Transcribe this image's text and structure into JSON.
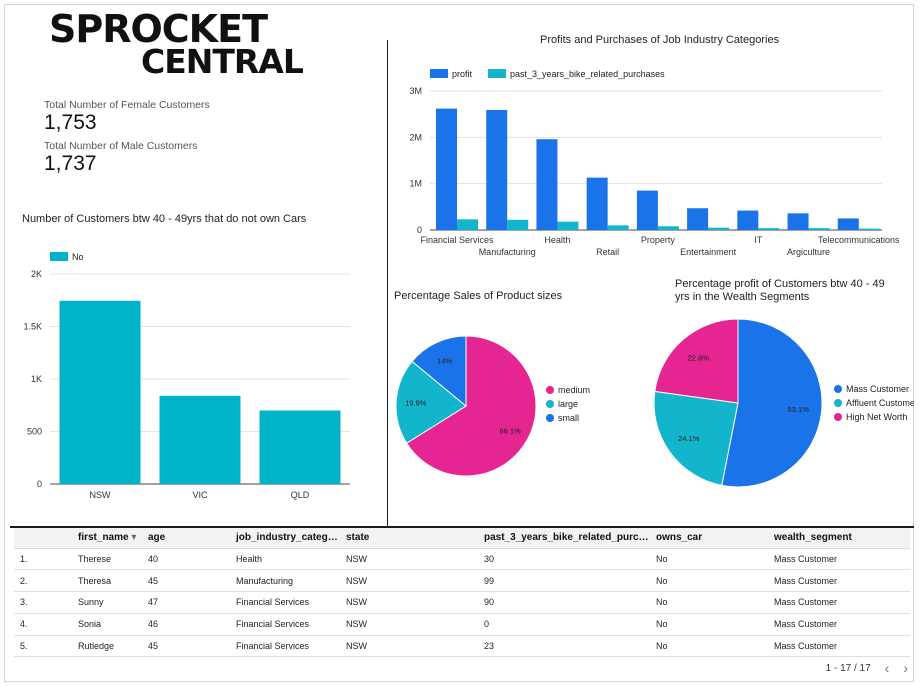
{
  "logo": {
    "line1": "SPROCKET",
    "line2": "CENTRAL"
  },
  "kpis": {
    "female_label": "Total Number of Female Customers",
    "female_value": "1,753",
    "male_label": "Total Number of Male Customers",
    "male_value": "1,737"
  },
  "colors": {
    "profit": "#1a73e8",
    "purchases": "#12b5cb",
    "no_car": "#00b3c9",
    "medium": "#e52592",
    "large": "#12b5cb",
    "small": "#1a73e8"
  },
  "chart_data": [
    {
      "id": "cars",
      "type": "bar",
      "title": "Number of Customers btw 40 - 49yrs that do not own Cars",
      "legend": [
        "No"
      ],
      "categories": [
        "NSW",
        "VIC",
        "QLD"
      ],
      "values": [
        1745,
        840,
        700
      ],
      "ylim": [
        0,
        2000
      ],
      "yticks": [
        {
          "v": 0,
          "label": "0"
        },
        {
          "v": 500,
          "label": "500"
        },
        {
          "v": 1000,
          "label": "1K"
        },
        {
          "v": 1500,
          "label": "1.5K"
        },
        {
          "v": 2000,
          "label": "2K"
        }
      ]
    },
    {
      "id": "industry",
      "type": "bar",
      "title": "Profits and Purchases of Job Industry Categories",
      "categories": [
        "Financial Services",
        "Manufacturing",
        "Health",
        "Retail",
        "Property",
        "Entertainment",
        "IT",
        "Argiculture",
        "Telecommunications"
      ],
      "series": [
        {
          "name": "profit",
          "values": [
            2620000,
            2590000,
            1960000,
            1130000,
            850000,
            470000,
            420000,
            360000,
            250000
          ]
        },
        {
          "name": "past_3_years_bike_related_purchases",
          "values": [
            230000,
            220000,
            180000,
            100000,
            80000,
            50000,
            40000,
            40000,
            30000
          ]
        }
      ],
      "ylim": [
        0,
        3000000
      ],
      "yticks": [
        {
          "v": 0,
          "label": "0"
        },
        {
          "v": 1000000,
          "label": "1M"
        },
        {
          "v": 2000000,
          "label": "2M"
        },
        {
          "v": 3000000,
          "label": "3M"
        }
      ]
    },
    {
      "id": "sizes",
      "type": "pie",
      "title": "Percentage Sales of Product sizes",
      "slices": [
        {
          "name": "medium",
          "value": 66.1,
          "label": "66.1%"
        },
        {
          "name": "large",
          "value": 19.9,
          "label": "19.9%"
        },
        {
          "name": "small",
          "value": 14.0,
          "label": "14%"
        }
      ]
    },
    {
      "id": "wealth",
      "type": "pie",
      "title": "Percentage profit of Customers btw 40 - 49 yrs in the  Wealth Segments",
      "slices": [
        {
          "name": "Mass Customer",
          "value": 53.1,
          "label": "53.1%"
        },
        {
          "name": "Affluent Customer",
          "value": 24.1,
          "label": "24.1%"
        },
        {
          "name": "High Net Worth",
          "value": 22.8,
          "label": "22.8%"
        }
      ]
    }
  ],
  "table": {
    "columns": [
      "",
      "first_name",
      "age",
      "job_industry_categ…",
      "state",
      "past_3_years_bike_related_purc…",
      "owns_car",
      "wealth_segment"
    ],
    "rows": [
      [
        "1.",
        "Therese",
        "40",
        "Health",
        "NSW",
        "30",
        "No",
        "Mass Customer"
      ],
      [
        "2.",
        "Theresa",
        "45",
        "Manufacturing",
        "NSW",
        "99",
        "No",
        "Mass Customer"
      ],
      [
        "3.",
        "Sunny",
        "47",
        "Financial Services",
        "NSW",
        "90",
        "No",
        "Mass Customer"
      ],
      [
        "4.",
        "Sonia",
        "46",
        "Financial Services",
        "NSW",
        "0",
        "No",
        "Mass Customer"
      ],
      [
        "5.",
        "Rutledge",
        "45",
        "Financial Services",
        "NSW",
        "23",
        "No",
        "Mass Customer"
      ]
    ],
    "sort_indicator": "▾",
    "pagination": "1 - 17 / 17",
    "prev_icon": "‹",
    "next_icon": "›"
  }
}
